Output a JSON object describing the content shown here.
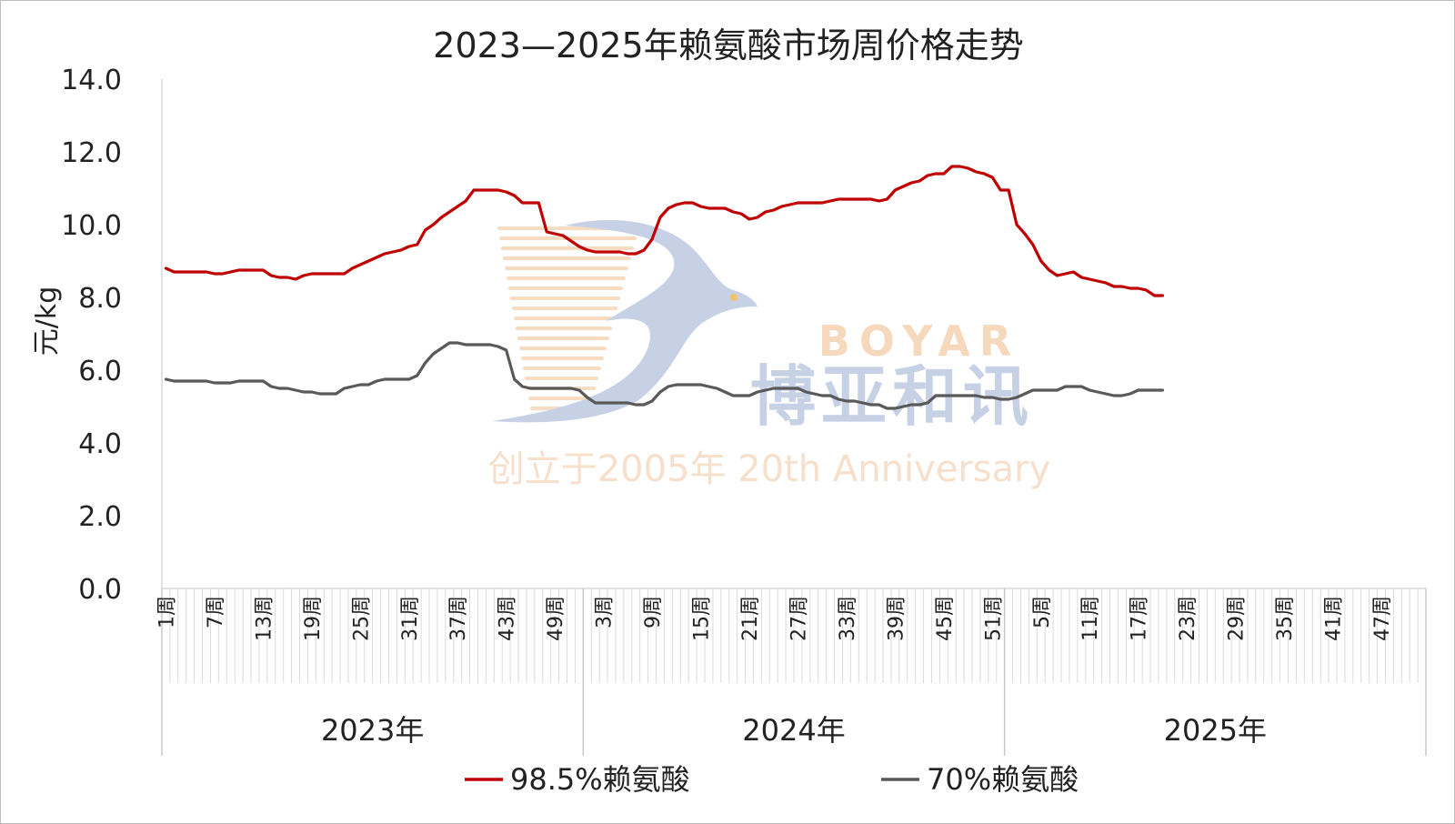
{
  "chart_data": {
    "type": "line",
    "title": "2023—2025年赖氨酸市场周价格走势",
    "ylabel": "元/kg",
    "xlabel": "",
    "ylim": [
      0,
      14
    ],
    "yticks": [
      "14.0",
      "12.0",
      "10.0",
      "8.0",
      "6.0",
      "4.0",
      "2.0",
      "0.0"
    ],
    "grid": false,
    "legend_position": "bottom",
    "weeks_per_year": 52,
    "years": [
      "2023年",
      "2024年",
      "2025年"
    ],
    "week_labels": {
      "2023年": [
        "1周",
        "7周",
        "13周",
        "19周",
        "25周",
        "31周",
        "37周",
        "43周",
        "49周"
      ],
      "2024年": [
        "3周",
        "9周",
        "15周",
        "21周",
        "27周",
        "33周",
        "39周",
        "45周",
        "51周"
      ],
      "2025年": [
        "5周",
        "11周",
        "17周",
        "23周",
        "29周",
        "35周",
        "41周",
        "47周"
      ]
    },
    "series": [
      {
        "name": "98.5%赖氨酸",
        "color": "#c00000",
        "values": [
          8.8,
          8.7,
          8.7,
          8.7,
          8.7,
          8.7,
          8.65,
          8.65,
          8.7,
          8.75,
          8.75,
          8.75,
          8.75,
          8.6,
          8.55,
          8.55,
          8.5,
          8.6,
          8.65,
          8.65,
          8.65,
          8.65,
          8.65,
          8.8,
          8.9,
          9.0,
          9.1,
          9.2,
          9.25,
          9.3,
          9.4,
          9.45,
          9.85,
          10.0,
          10.2,
          10.35,
          10.5,
          10.65,
          10.95,
          10.95,
          10.95,
          10.95,
          10.9,
          10.8,
          10.6,
          10.6,
          10.6,
          9.8,
          9.75,
          9.7,
          9.55,
          9.4,
          9.3,
          9.25,
          9.25,
          9.25,
          9.25,
          9.2,
          9.2,
          9.3,
          9.6,
          10.2,
          10.45,
          10.55,
          10.6,
          10.6,
          10.5,
          10.45,
          10.45,
          10.45,
          10.35,
          10.3,
          10.15,
          10.2,
          10.35,
          10.4,
          10.5,
          10.55,
          10.6,
          10.6,
          10.6,
          10.6,
          10.65,
          10.7,
          10.7,
          10.7,
          10.7,
          10.7,
          10.65,
          10.7,
          10.95,
          11.05,
          11.15,
          11.2,
          11.35,
          11.4,
          11.4,
          11.6,
          11.6,
          11.55,
          11.45,
          11.4,
          11.3,
          10.95,
          10.95,
          10.0,
          9.75,
          9.45,
          9.0,
          8.75,
          8.6,
          8.65,
          8.7,
          8.55,
          8.5,
          8.45,
          8.4,
          8.3,
          8.3,
          8.25,
          8.25,
          8.2,
          8.05,
          8.05
        ]
      },
      {
        "name": "70%赖氨酸",
        "color": "#595959",
        "values": [
          5.75,
          5.7,
          5.7,
          5.7,
          5.7,
          5.7,
          5.65,
          5.65,
          5.65,
          5.7,
          5.7,
          5.7,
          5.7,
          5.55,
          5.5,
          5.5,
          5.45,
          5.4,
          5.4,
          5.35,
          5.35,
          5.35,
          5.5,
          5.55,
          5.6,
          5.6,
          5.7,
          5.75,
          5.75,
          5.75,
          5.75,
          5.85,
          6.2,
          6.45,
          6.6,
          6.75,
          6.75,
          6.7,
          6.7,
          6.7,
          6.7,
          6.65,
          6.55,
          5.75,
          5.55,
          5.5,
          5.5,
          5.5,
          5.5,
          5.5,
          5.5,
          5.45,
          5.25,
          5.1,
          5.1,
          5.1,
          5.1,
          5.1,
          5.05,
          5.05,
          5.15,
          5.4,
          5.55,
          5.6,
          5.6,
          5.6,
          5.6,
          5.55,
          5.5,
          5.4,
          5.3,
          5.3,
          5.3,
          5.4,
          5.45,
          5.5,
          5.5,
          5.5,
          5.5,
          5.4,
          5.35,
          5.3,
          5.3,
          5.2,
          5.15,
          5.15,
          5.1,
          5.05,
          5.05,
          4.95,
          4.95,
          5.0,
          5.05,
          5.05,
          5.1,
          5.3,
          5.3,
          5.3,
          5.3,
          5.3,
          5.3,
          5.25,
          5.25,
          5.2,
          5.2,
          5.25,
          5.35,
          5.45,
          5.45,
          5.45,
          5.45,
          5.55,
          5.55,
          5.55,
          5.45,
          5.4,
          5.35,
          5.3,
          5.3,
          5.35,
          5.45,
          5.45,
          5.45,
          5.45
        ]
      }
    ]
  },
  "watermark": {
    "brand_en": "BOYAR",
    "brand_cn": "博亚和讯",
    "tagline": "创立于2005年 20th Anniversary",
    "colors": {
      "blue": "#c7d1e6",
      "orange": "#f6d9bd"
    }
  }
}
